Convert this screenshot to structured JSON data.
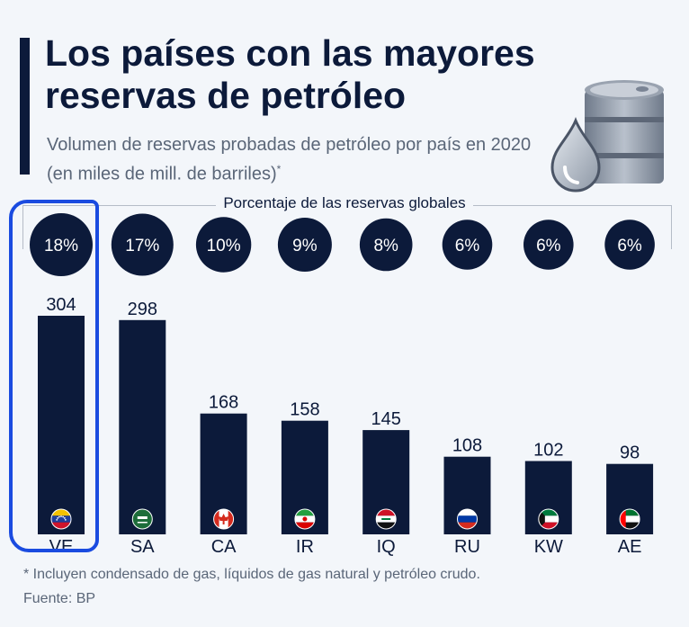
{
  "header": {
    "title": "Los países con las mayores reservas de petróleo",
    "subtitle": "Volumen de reservas probadas de petróleo por país en 2020 (en miles de mill. de barriles)",
    "subtitle_mark": "*"
  },
  "percent_label": "Porcentaje de las reservas globales",
  "footer": {
    "note": "* Incluyen condensado de gas, líquidos de gas natural y petróleo crudo.",
    "source": "Fuente: BP"
  },
  "colors": {
    "bar": "#0c1a3a",
    "highlight": "#1a4be0",
    "text_muted": "#5a6678"
  },
  "chart_data": {
    "type": "bar",
    "title": "Los países con las mayores reservas de petróleo",
    "categories": [
      "VE",
      "SA",
      "CA",
      "IR",
      "IQ",
      "RU",
      "KW",
      "AE"
    ],
    "values": [
      304,
      298,
      168,
      158,
      145,
      108,
      102,
      98
    ],
    "percent_labels": [
      "18%",
      "17%",
      "10%",
      "9%",
      "8%",
      "6%",
      "6%",
      "6%"
    ],
    "percent_values": [
      18,
      17,
      10,
      9,
      8,
      6,
      6,
      6
    ],
    "flags": [
      "venezuela-flag-icon",
      "saudi-arabia-flag-icon",
      "canada-flag-icon",
      "iran-flag-icon",
      "iraq-flag-icon",
      "russia-flag-icon",
      "kuwait-flag-icon",
      "uae-flag-icon"
    ],
    "highlighted": "VE",
    "xlabel": "",
    "ylabel": "",
    "ylim": [
      0,
      304
    ],
    "grid": false,
    "legend": "none"
  }
}
